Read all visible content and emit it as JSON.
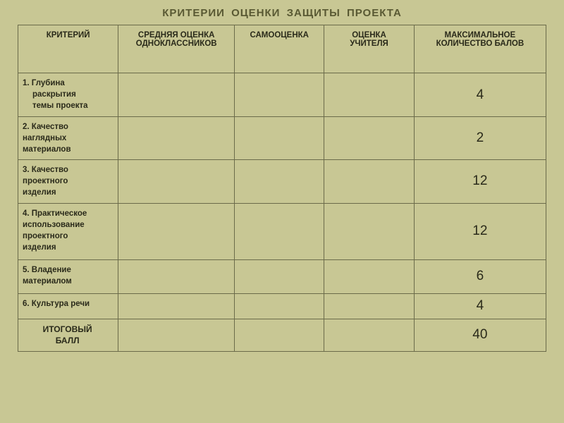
{
  "title": "КРИТЕРИИ  ОЦЕНКИ  ЗАЩИТЫ  ПРОЕКТА",
  "headers": {
    "col1": "КРИТЕРИЙ",
    "col2_line1": "СРЕДНЯЯ ОЦЕНКА",
    "col2_line2": "ОДНОКЛАССНИКОВ",
    "col3": "САМООЦЕНКА",
    "col4_line1": "ОЦЕНКА",
    "col4_line2": "УЧИТЕЛЯ",
    "col5_line1": "МАКСИМАЛЬНОЕ",
    "col5_line2": "КОЛИЧЕСТВО БАЛОВ"
  },
  "rows": [
    {
      "label_line1": "1. Глубина",
      "label_line2": "раскрытия",
      "label_line3": "темы проекта",
      "max": "4"
    },
    {
      "label_line1": "2. Качество",
      "label_line2": "наглядных",
      "label_line3": "материалов",
      "max": "2"
    },
    {
      "label_line1": "3. Качество",
      "label_line2": "проектного",
      "label_line3": "изделия",
      "max": "12"
    },
    {
      "label_line1": "4. Практическое",
      "label_line2": "использование",
      "label_line3": "проектного",
      "label_line4": "изделия",
      "max": "12"
    },
    {
      "label_line1": "5. Владение",
      "label_line2": "материалом",
      "max": "6"
    },
    {
      "label_line1": "6. Культура речи",
      "max": "4"
    }
  ],
  "total": {
    "label_line1": "ИТОГОВЫЙ",
    "label_line2": "БАЛЛ",
    "value": "40"
  },
  "colors": {
    "background": "#c8c794",
    "border": "#6b6b4a",
    "title": "#595933",
    "text": "#2a2a1a"
  }
}
